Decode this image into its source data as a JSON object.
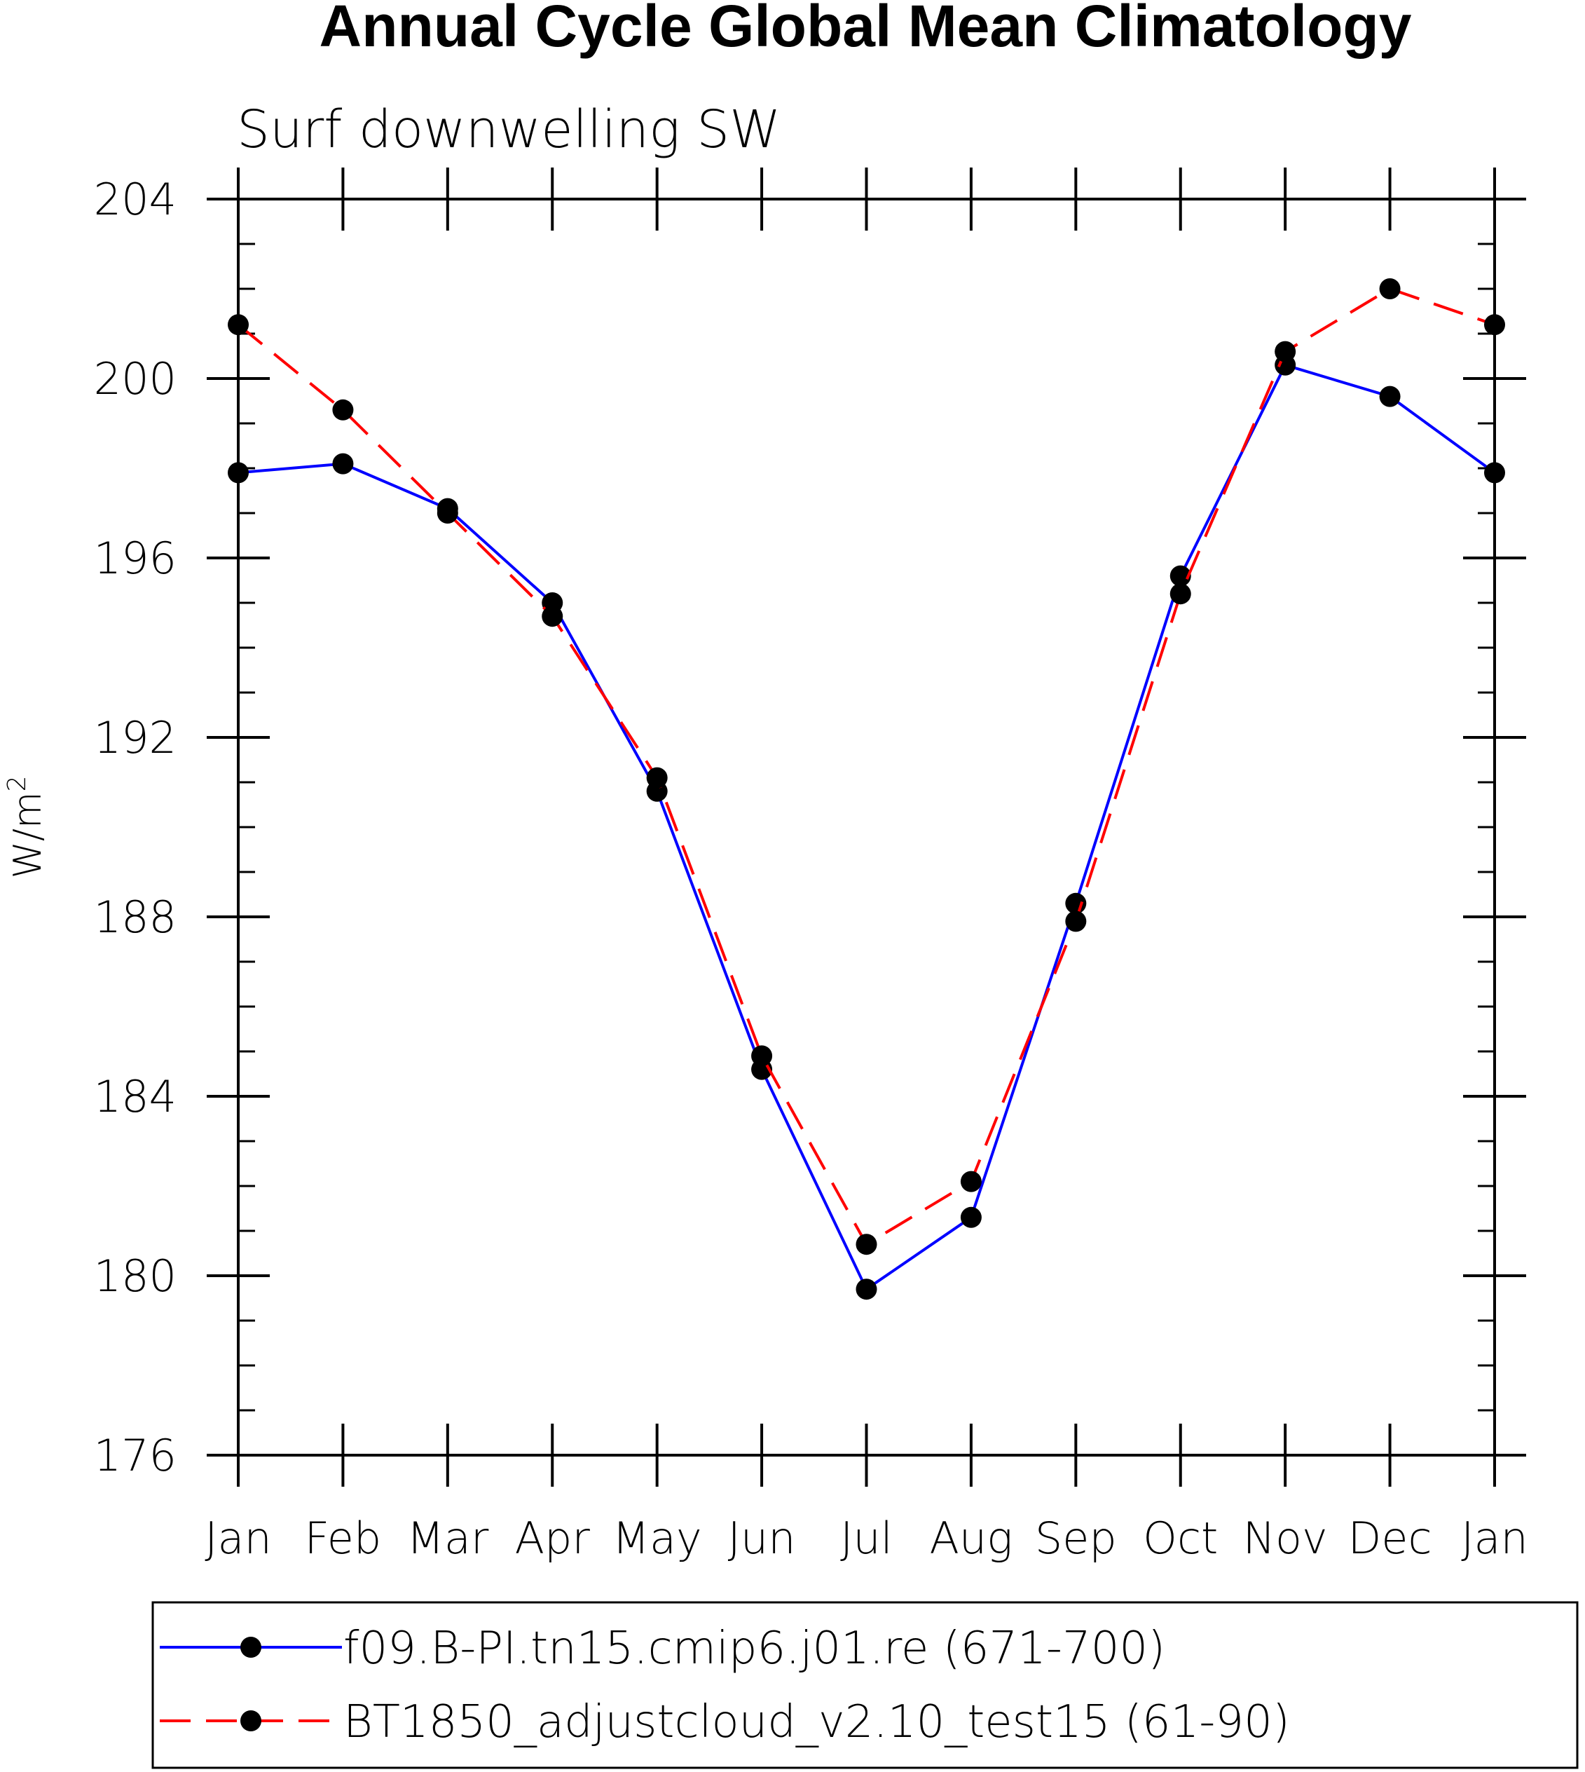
{
  "chart_data": {
    "type": "line",
    "title": "Annual Cycle Global Mean Climatology",
    "subtitle": "Surf downwelling SW",
    "ylabel": "W/m",
    "ylabel_superscript": "2",
    "xlabel": "",
    "categories": [
      "Jan",
      "Feb",
      "Mar",
      "Apr",
      "May",
      "Jun",
      "Jul",
      "Aug",
      "Sep",
      "Oct",
      "Nov",
      "Dec",
      "Jan"
    ],
    "ylim": [
      176,
      204
    ],
    "yticks": [
      176,
      180,
      184,
      188,
      192,
      196,
      200,
      204
    ],
    "y_minor_step": 1,
    "series": [
      {
        "name": "f09.B-PI.tn15.cmip6.j01.re (671-700)",
        "color": "#0000ff",
        "dash": "solid",
        "marker": "filled-circle",
        "values": [
          197.9,
          198.1,
          197.1,
          195.0,
          190.8,
          184.6,
          179.7,
          181.3,
          188.3,
          195.6,
          200.3,
          199.6,
          197.9
        ]
      },
      {
        "name": "BT1850_adjustcloud_v2.10_test15 (61-90)",
        "color": "#ff0000",
        "dash": "dashed",
        "marker": "filled-circle",
        "values": [
          201.2,
          199.3,
          197.0,
          194.7,
          191.1,
          184.9,
          180.7,
          182.1,
          187.9,
          195.2,
          200.6,
          202.0,
          201.2
        ]
      }
    ],
    "legend_position": "bottom"
  }
}
